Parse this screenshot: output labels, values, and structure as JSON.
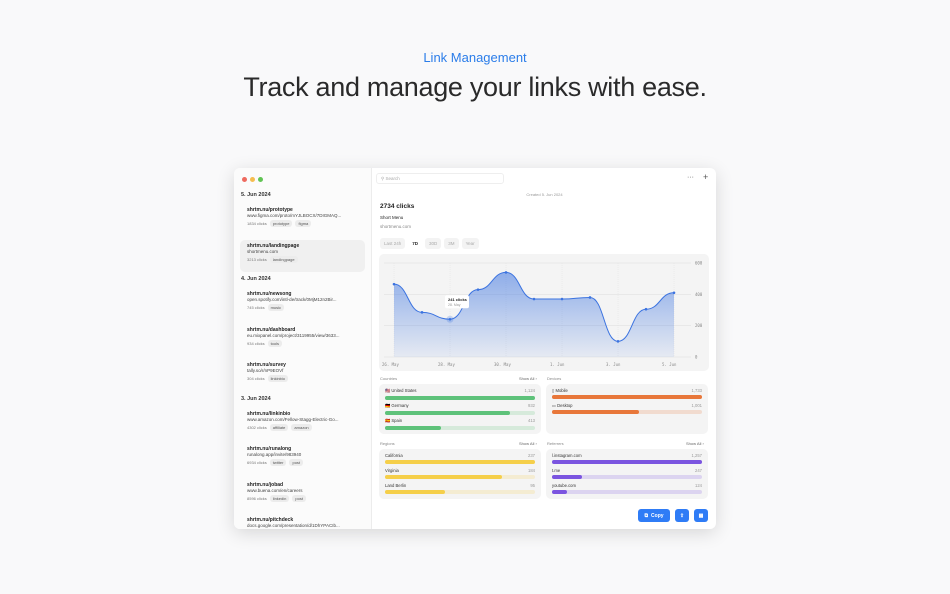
{
  "hero": {
    "kicker": "Link Management",
    "headline": "Track and manage your links with ease."
  },
  "sidebar": {
    "groups": [
      {
        "date": "5. Jun 2024",
        "items": [
          {
            "title": "shrtm.nu/prototype",
            "url": "www.figma.com/proto/mYJLBOCX/7DIGMAQ...",
            "clicks": "1834 clicks",
            "tags": [
              "prototype",
              "figma"
            ],
            "selected": false
          },
          {
            "title": "shrtm.nu/landingpage",
            "url": "shortmenu.com",
            "clicks": "3213 clicks",
            "tags": [
              "landingpage"
            ],
            "selected": true
          }
        ]
      },
      {
        "date": "4. Jun 2024",
        "items": [
          {
            "title": "shrtm.nu/newsong",
            "url": "open.spotify.com/intl-de/track/0MjM12n2Bir...",
            "clicks": "745 clicks",
            "tags": [
              "music"
            ]
          },
          {
            "title": "shrtm.nu/dashboard",
            "url": "eu.mixpanel.com/project/3119955/view/3633...",
            "clicks": "934 clicks",
            "tags": [
              "tools"
            ]
          },
          {
            "title": "shrtm.nu/survey",
            "url": "tally.so/r/nP9EOVf",
            "clicks": "304 clicks",
            "tags": [
              "linkinbio"
            ]
          }
        ]
      },
      {
        "date": "3. Jun 2024",
        "items": [
          {
            "title": "shrtm.nu/linkinbio",
            "url": "www.amazon.com/Fellow-Stagg-Electric-Go...",
            "clicks": "4302 clicks",
            "tags": [
              "affiliate",
              "amazon"
            ]
          },
          {
            "title": "shrtm.nu/runalong",
            "url": "runalong.app/invite/983940",
            "clicks": "6934 clicks",
            "tags": [
              "twitter",
              "post"
            ]
          },
          {
            "title": "shrtm.nu/jobad",
            "url": "www.buena.com/en/careers",
            "clicks": "8596 clicks",
            "tags": [
              "linkedin",
              "post"
            ]
          },
          {
            "title": "shrtm.nu/pitchdeck",
            "url": "docs.google.com/presentation/d/1DhYPACIb...",
            "clicks": "",
            "tags": []
          }
        ]
      }
    ]
  },
  "toolbar": {
    "search_placeholder": "Search",
    "more_icon": "ellipsis-icon",
    "add_icon": "plus-icon"
  },
  "detail": {
    "created": "Created 5. Jun 2024",
    "clicks": "2734 clicks",
    "name": "Short Menu",
    "domain": "shortmenu.com",
    "ranges": [
      "Last 24h",
      "7D",
      "30D",
      "3M",
      "Year"
    ],
    "active_range": "7D"
  },
  "chart_data": {
    "type": "area",
    "x": [
      "26. May",
      "27. May",
      "28. May",
      "29. May",
      "30. May",
      "31. May",
      "1. Jun",
      "2. Jun",
      "3. Jun",
      "4. Jun",
      "5. Jun"
    ],
    "values": [
      465,
      285,
      241,
      430,
      540,
      370,
      370,
      380,
      100,
      305,
      410
    ],
    "xticks": [
      "26. May",
      "28. May",
      "30. May",
      "1. Jun",
      "3. Jun",
      "5. Jun"
    ],
    "yticks": [
      "0",
      "200",
      "400",
      "600"
    ],
    "ylim": [
      0,
      600
    ],
    "grid": true,
    "color": "#3b73e0",
    "tooltip": {
      "value": "241 clicks",
      "date": "28. May"
    }
  },
  "countries": {
    "label": "Countries",
    "show_all": "Show All",
    "color": "#5ec27a",
    "rows": [
      {
        "flag": "🇺🇸",
        "name": "United States",
        "value": "1,124",
        "pct": 1.0
      },
      {
        "flag": "🇩🇪",
        "name": "Germany",
        "value": "932",
        "pct": 0.83
      },
      {
        "flag": "🇪🇸",
        "name": "Spain",
        "value": "413",
        "pct": 0.37
      }
    ]
  },
  "devices": {
    "label": "Devices",
    "color": "#e8773a",
    "rows": [
      {
        "name": "Mobile",
        "value": "1,733",
        "pct": 1.0,
        "icon": "phone-icon"
      },
      {
        "name": "Desktop",
        "value": "1,001",
        "pct": 0.58,
        "icon": "desktop-icon"
      }
    ]
  },
  "regions": {
    "label": "Regions",
    "show_all": "Show All",
    "color": "#f5cf4a",
    "rows": [
      {
        "name": "California",
        "value": "237",
        "pct": 1.0
      },
      {
        "name": "Virginia",
        "value": "184",
        "pct": 0.78
      },
      {
        "name": "Land Berlin",
        "value": "95",
        "pct": 0.4
      }
    ]
  },
  "referrers": {
    "label": "Referrers",
    "show_all": "Show All",
    "color": "#7b55e0",
    "rows": [
      {
        "name": "l.instagram.com",
        "value": "1,257",
        "pct": 1.0
      },
      {
        "name": "t.me",
        "value": "247",
        "pct": 0.2
      },
      {
        "name": "youtube.com",
        "value": "124",
        "pct": 0.1
      }
    ]
  },
  "actions": {
    "copy": "Copy"
  }
}
